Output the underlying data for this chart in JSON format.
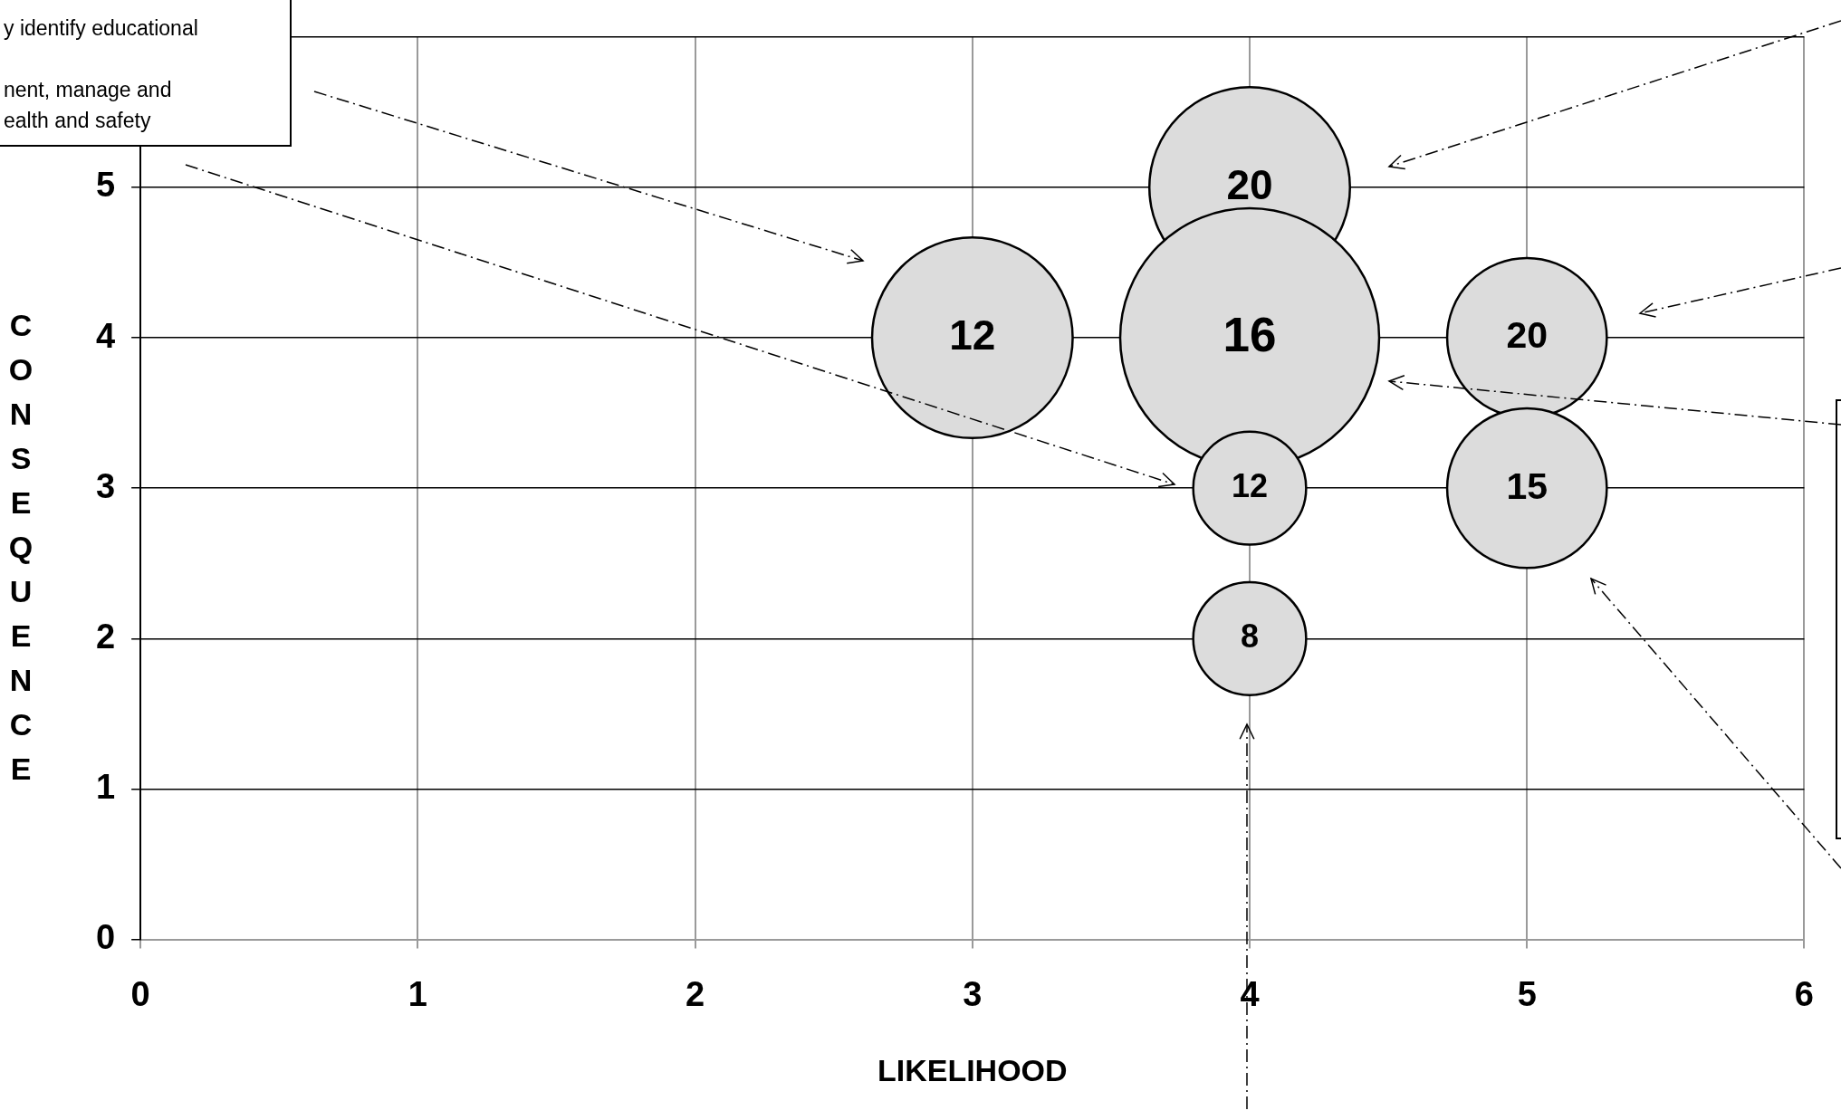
{
  "chart_data": {
    "type": "bubble",
    "xlabel": "LIKELIHOOD",
    "ylabel": "CONSEQUENCE",
    "annotations": [
      "y identify educational\n\nnent, manage and\nealth and safety",
      {
        "text": "20",
        "x": 4,
        "y": 5
      },
      {
        "text": "16",
        "x": 4,
        "y": 4
      },
      {
        "text": "12",
        "x": 3,
        "y": 4
      },
      {
        "text": "20",
        "x": 5,
        "y": 4
      },
      {
        "text": "15",
        "x": 5,
        "y": 3
      },
      {
        "text": "12",
        "x": 4,
        "y": 3
      },
      {
        "text": "8",
        "x": 4,
        "y": 2
      }
    ],
    "x": [
      4,
      4,
      3,
      5,
      5,
      4,
      4
    ],
    "values": [
      5,
      4,
      4,
      4,
      3,
      3,
      2
    ],
    "sizes": [
      0.6,
      1,
      0.6,
      0.38,
      0.38,
      0.19,
      0.19
    ],
    "color": "#dcdcdc",
    "xlim": [
      0,
      6
    ],
    "xticks": [
      0,
      1,
      2,
      3,
      4,
      5,
      6
    ],
    "ylim": [
      0,
      6
    ],
    "yticks": [
      0,
      1,
      2,
      3,
      4,
      5,
      {
        "value": 6,
        "label": null
      }
    ],
    "grid": true,
    "legend": false
  }
}
